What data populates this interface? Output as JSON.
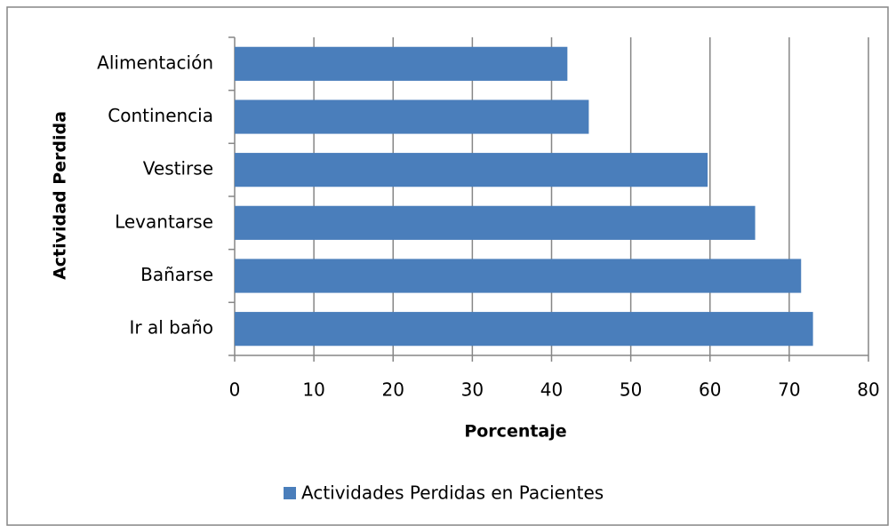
{
  "chart_data": {
    "type": "bar",
    "orientation": "horizontal",
    "ylabel": "Actividad Perdida",
    "xlabel": "Porcentaje",
    "categories": [
      "Alimentación",
      "Continencia",
      "Vestirse",
      "Levantarse",
      "Bañarse",
      "Ir al baño"
    ],
    "series": [
      {
        "name": "Actividades Perdidas en Pacientes",
        "color": "#4a7ebb",
        "values": [
          42,
          44.7,
          59.7,
          65.7,
          71.5,
          73
        ]
      }
    ],
    "xlim": [
      0,
      80
    ],
    "xticks": [
      0,
      10,
      20,
      30,
      40,
      50,
      60,
      70,
      80
    ],
    "grid": true,
    "legend": "bottom"
  }
}
